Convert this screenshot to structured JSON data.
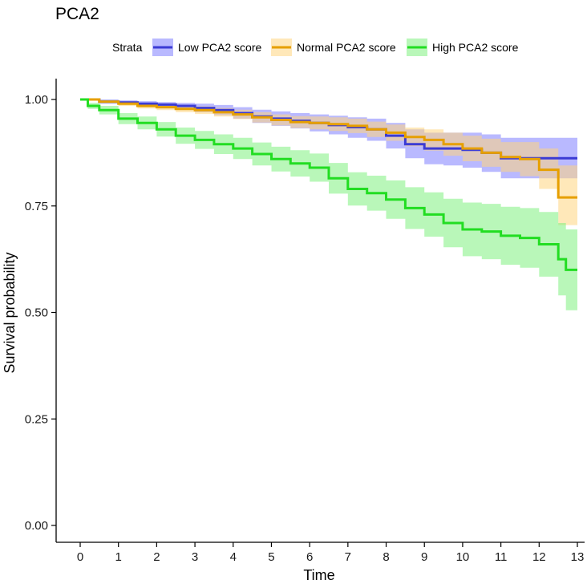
{
  "chart_data": {
    "type": "line",
    "subtype": "kaplan-meier survival curve with confidence bands",
    "title": "PCA2",
    "xlabel": "Time",
    "ylabel": "Survival probability",
    "xlim": [
      0,
      13
    ],
    "ylim": [
      0,
      1
    ],
    "x_ticks": [
      "0",
      "1",
      "2",
      "3",
      "4",
      "5",
      "6",
      "7",
      "8",
      "9",
      "10",
      "11",
      "12",
      "13"
    ],
    "y_ticks": [
      "0.00",
      "0.25",
      "0.50",
      "0.75",
      "1.00"
    ],
    "grid": false,
    "legend": {
      "title": "Strata",
      "placement": "top",
      "entries": [
        "Low PCA2 score",
        "Normal PCA2 score",
        "High PCA2 score"
      ]
    },
    "series": [
      {
        "name": "Low PCA2 score",
        "color": "#3B3BD4",
        "fill": "#8080FF",
        "x": [
          0,
          0.5,
          1,
          1.5,
          2,
          2.5,
          3,
          3.5,
          4,
          4.5,
          5,
          5.5,
          6,
          6.5,
          7,
          7.5,
          8,
          8.5,
          9,
          9.5,
          10,
          10.5,
          11,
          11.5,
          12,
          12.5,
          13
        ],
        "y": [
          1.0,
          0.995,
          0.993,
          0.99,
          0.988,
          0.985,
          0.98,
          0.975,
          0.968,
          0.96,
          0.955,
          0.95,
          0.945,
          0.94,
          0.935,
          0.93,
          0.915,
          0.895,
          0.885,
          0.885,
          0.882,
          0.875,
          0.862,
          0.862,
          0.862,
          0.862,
          0.862
        ],
        "lower": [
          1.0,
          0.99,
          0.988,
          0.984,
          0.98,
          0.976,
          0.97,
          0.963,
          0.955,
          0.945,
          0.938,
          0.932,
          0.925,
          0.918,
          0.91,
          0.903,
          0.885,
          0.862,
          0.848,
          0.845,
          0.84,
          0.83,
          0.815,
          0.815,
          0.815,
          0.815,
          0.815
        ],
        "upper": [
          1.0,
          1.0,
          0.998,
          0.996,
          0.994,
          0.992,
          0.99,
          0.987,
          0.982,
          0.976,
          0.972,
          0.968,
          0.965,
          0.962,
          0.958,
          0.955,
          0.945,
          0.93,
          0.922,
          0.922,
          0.922,
          0.918,
          0.91,
          0.91,
          0.91,
          0.91,
          0.91
        ]
      },
      {
        "name": "Normal PCA2 score",
        "color": "#E69F00",
        "fill": "#FFD580",
        "x": [
          0,
          0.5,
          1,
          1.5,
          2,
          2.5,
          3,
          3.5,
          4,
          4.5,
          5,
          5.5,
          6,
          6.5,
          7,
          7.5,
          8,
          8.5,
          9,
          9.5,
          10,
          10.5,
          11,
          11.5,
          12,
          12.5,
          13
        ],
        "y": [
          1.0,
          0.995,
          0.99,
          0.985,
          0.982,
          0.978,
          0.975,
          0.97,
          0.965,
          0.958,
          0.952,
          0.947,
          0.945,
          0.942,
          0.938,
          0.93,
          0.922,
          0.912,
          0.905,
          0.895,
          0.885,
          0.875,
          0.865,
          0.86,
          0.835,
          0.77,
          0.77
        ],
        "lower": [
          1.0,
          0.992,
          0.985,
          0.979,
          0.975,
          0.97,
          0.966,
          0.96,
          0.954,
          0.946,
          0.939,
          0.933,
          0.93,
          0.926,
          0.921,
          0.912,
          0.903,
          0.89,
          0.88,
          0.868,
          0.855,
          0.842,
          0.83,
          0.82,
          0.79,
          0.705,
          0.705
        ],
        "upper": [
          1.0,
          0.998,
          0.995,
          0.991,
          0.989,
          0.986,
          0.984,
          0.98,
          0.976,
          0.97,
          0.965,
          0.961,
          0.96,
          0.958,
          0.955,
          0.948,
          0.941,
          0.934,
          0.93,
          0.922,
          0.915,
          0.908,
          0.9,
          0.9,
          0.885,
          0.845,
          0.845
        ]
      },
      {
        "name": "High PCA2 score",
        "color": "#22DD22",
        "fill": "#80F080",
        "x": [
          0,
          0.2,
          0.5,
          1,
          1.5,
          2,
          2.5,
          3,
          3.5,
          4,
          4.5,
          5,
          5.5,
          6,
          6.5,
          7,
          7.5,
          8,
          8.5,
          9,
          9.5,
          10,
          10.5,
          11,
          11.5,
          12,
          12.5,
          12.7,
          13
        ],
        "y": [
          1.0,
          0.985,
          0.975,
          0.955,
          0.945,
          0.93,
          0.915,
          0.905,
          0.895,
          0.885,
          0.872,
          0.86,
          0.85,
          0.84,
          0.815,
          0.79,
          0.78,
          0.765,
          0.745,
          0.73,
          0.71,
          0.695,
          0.69,
          0.68,
          0.675,
          0.66,
          0.625,
          0.6,
          0.6
        ],
        "lower": [
          1.0,
          0.978,
          0.965,
          0.942,
          0.93,
          0.913,
          0.896,
          0.884,
          0.872,
          0.86,
          0.845,
          0.831,
          0.819,
          0.807,
          0.779,
          0.751,
          0.739,
          0.72,
          0.696,
          0.678,
          0.653,
          0.632,
          0.625,
          0.612,
          0.605,
          0.584,
          0.54,
          0.505,
          0.505
        ],
        "upper": [
          1.0,
          0.992,
          0.985,
          0.968,
          0.96,
          0.947,
          0.934,
          0.926,
          0.918,
          0.91,
          0.899,
          0.889,
          0.881,
          0.873,
          0.851,
          0.829,
          0.821,
          0.81,
          0.794,
          0.782,
          0.767,
          0.758,
          0.755,
          0.748,
          0.745,
          0.736,
          0.71,
          0.695,
          0.695
        ]
      }
    ]
  }
}
